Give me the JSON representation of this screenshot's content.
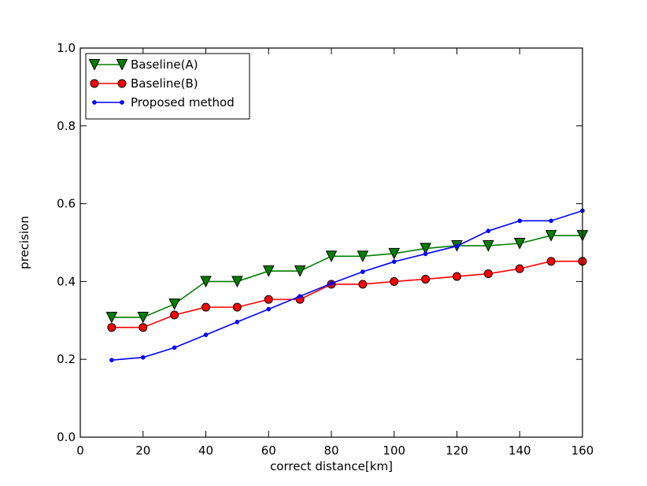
{
  "chart_data": {
    "type": "line",
    "title": "",
    "xlabel": "correct distance[km]",
    "ylabel": "precision",
    "xlim": [
      0,
      160
    ],
    "ylim": [
      0.0,
      1.0
    ],
    "xticks": [
      "0",
      "20",
      "40",
      "60",
      "80",
      "100",
      "120",
      "140",
      "160"
    ],
    "yticks": [
      "0.0",
      "0.2",
      "0.4",
      "0.6",
      "0.8",
      "1.0"
    ],
    "grid": false,
    "legend_position": "top-left",
    "x": [
      10,
      20,
      30,
      40,
      50,
      60,
      70,
      80,
      90,
      100,
      110,
      120,
      130,
      140,
      150,
      160
    ],
    "series": [
      {
        "name": "Baseline(A)",
        "color": "#007f00",
        "marker": "triangle-down",
        "values": [
          0.308,
          0.308,
          0.342,
          0.4,
          0.4,
          0.427,
          0.427,
          0.465,
          0.465,
          0.472,
          0.485,
          0.492,
          0.492,
          0.498,
          0.518,
          0.518
        ]
      },
      {
        "name": "Baseline(B)",
        "color": "#ff0000",
        "marker": "circle",
        "values": [
          0.282,
          0.282,
          0.314,
          0.334,
          0.334,
          0.354,
          0.354,
          0.393,
          0.393,
          0.4,
          0.406,
          0.413,
          0.42,
          0.433,
          0.452,
          0.452
        ]
      },
      {
        "name": "Proposed method",
        "color": "#0000ff",
        "marker": "dot",
        "values": [
          0.198,
          0.205,
          0.23,
          0.263,
          0.296,
          0.329,
          0.362,
          0.395,
          0.425,
          0.451,
          0.471,
          0.491,
          0.53,
          0.556,
          0.556,
          0.582
        ]
      }
    ]
  }
}
